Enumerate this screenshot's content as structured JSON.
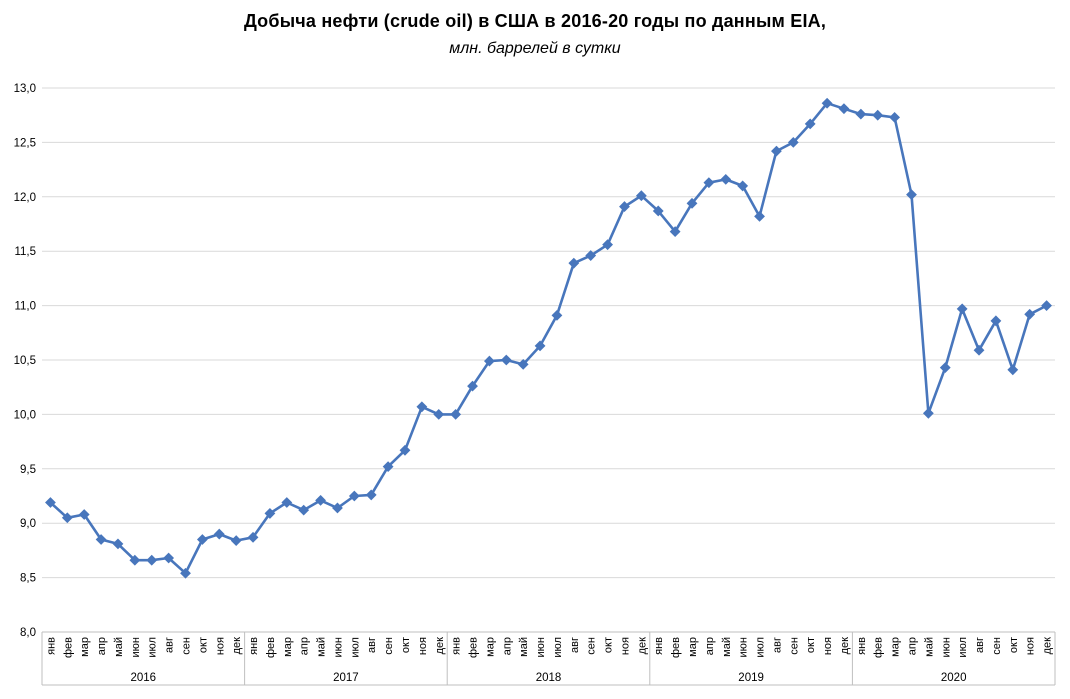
{
  "chart_data": {
    "type": "line",
    "title": "Добыча нефти (crude oil) в США в 2016-20 годы по данным EIA,",
    "subtitle": "млн. баррелей в сутки",
    "legend": "none",
    "grid": "horizontal",
    "marker_shape": "diamond",
    "y_axis": {
      "min": 8.0,
      "max": 13.0,
      "step": 0.5,
      "tick_labels": [
        "8,0",
        "8,5",
        "9,0",
        "9,5",
        "10,0",
        "10,5",
        "11,0",
        "11,5",
        "12,0",
        "12,5",
        "13,0"
      ]
    },
    "x_axis": {
      "month_labels": [
        "янв",
        "фев",
        "мар",
        "апр",
        "май",
        "июн",
        "июл",
        "авг",
        "сен",
        "окт",
        "ноя",
        "дек"
      ],
      "years": [
        "2016",
        "2017",
        "2018",
        "2019",
        "2020"
      ]
    },
    "series": [
      {
        "values": [
          9.19,
          9.05,
          9.08,
          8.85,
          8.81,
          8.66,
          8.66,
          8.68,
          8.54,
          8.85,
          8.9,
          8.84,
          8.87,
          9.09,
          9.19,
          9.12,
          9.21,
          9.14,
          9.25,
          9.26,
          9.52,
          9.67,
          10.07,
          10.0,
          10.0,
          10.26,
          10.49,
          10.5,
          10.46,
          10.63,
          10.91,
          11.39,
          11.46,
          11.56,
          11.91,
          12.01,
          11.87,
          11.68,
          11.94,
          12.13,
          12.16,
          12.1,
          11.82,
          12.42,
          12.5,
          12.67,
          12.86,
          12.81,
          12.76,
          12.75,
          12.73,
          12.02,
          10.01,
          10.43,
          10.97,
          10.59,
          10.86,
          10.41,
          10.92,
          11.0
        ]
      }
    ],
    "colors": {
      "line": "#4876bc",
      "marker": "#4876bc",
      "gridline": "#d9d9d9",
      "axis": "#bfbfbf",
      "text": "#000000"
    }
  }
}
